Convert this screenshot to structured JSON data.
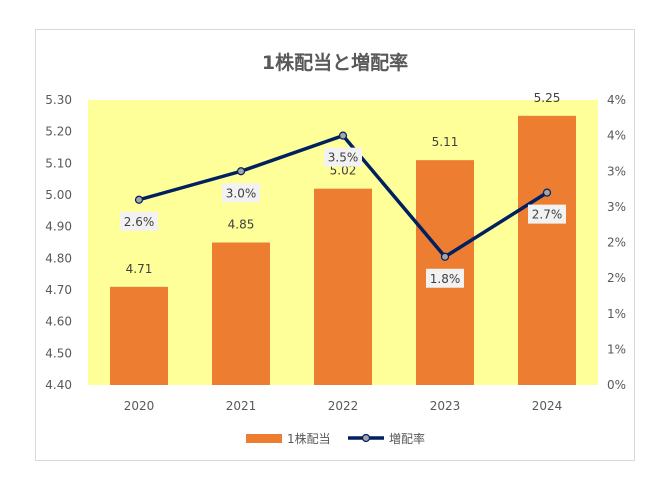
{
  "chart_data": {
    "type": "bar",
    "title": "1株配当と増配率",
    "categories": [
      "2020",
      "2021",
      "2022",
      "2023",
      "2024"
    ],
    "series": [
      {
        "name": "1株配当",
        "type": "bar",
        "axis": "left",
        "values": [
          4.71,
          4.85,
          5.02,
          5.11,
          5.25
        ],
        "labels": [
          "4.71",
          "4.85",
          "5.02",
          "5.11",
          "5.25"
        ],
        "color": "#ED7D31"
      },
      {
        "name": "増配率",
        "type": "line",
        "axis": "right",
        "values": [
          2.6,
          3.0,
          3.5,
          1.8,
          2.7
        ],
        "labels": [
          "2.6%",
          "3.0%",
          "3.5%",
          "1.8%",
          "2.7%"
        ],
        "color": "#002060",
        "marker_color": "#A5A5A5"
      }
    ],
    "y_left": {
      "ylim": [
        4.4,
        5.3
      ],
      "ticks": [
        "5.30",
        "5.20",
        "5.10",
        "5.00",
        "4.90",
        "4.80",
        "4.70",
        "4.60",
        "4.50",
        "4.40"
      ]
    },
    "y_right": {
      "ylim": [
        0,
        4
      ],
      "ticks": [
        "4%",
        "4%",
        "3%",
        "3%",
        "2%",
        "2%",
        "1%",
        "1%",
        "0%"
      ]
    },
    "plot_background": "#FFFF99",
    "grid": false,
    "legend": "bottom"
  }
}
